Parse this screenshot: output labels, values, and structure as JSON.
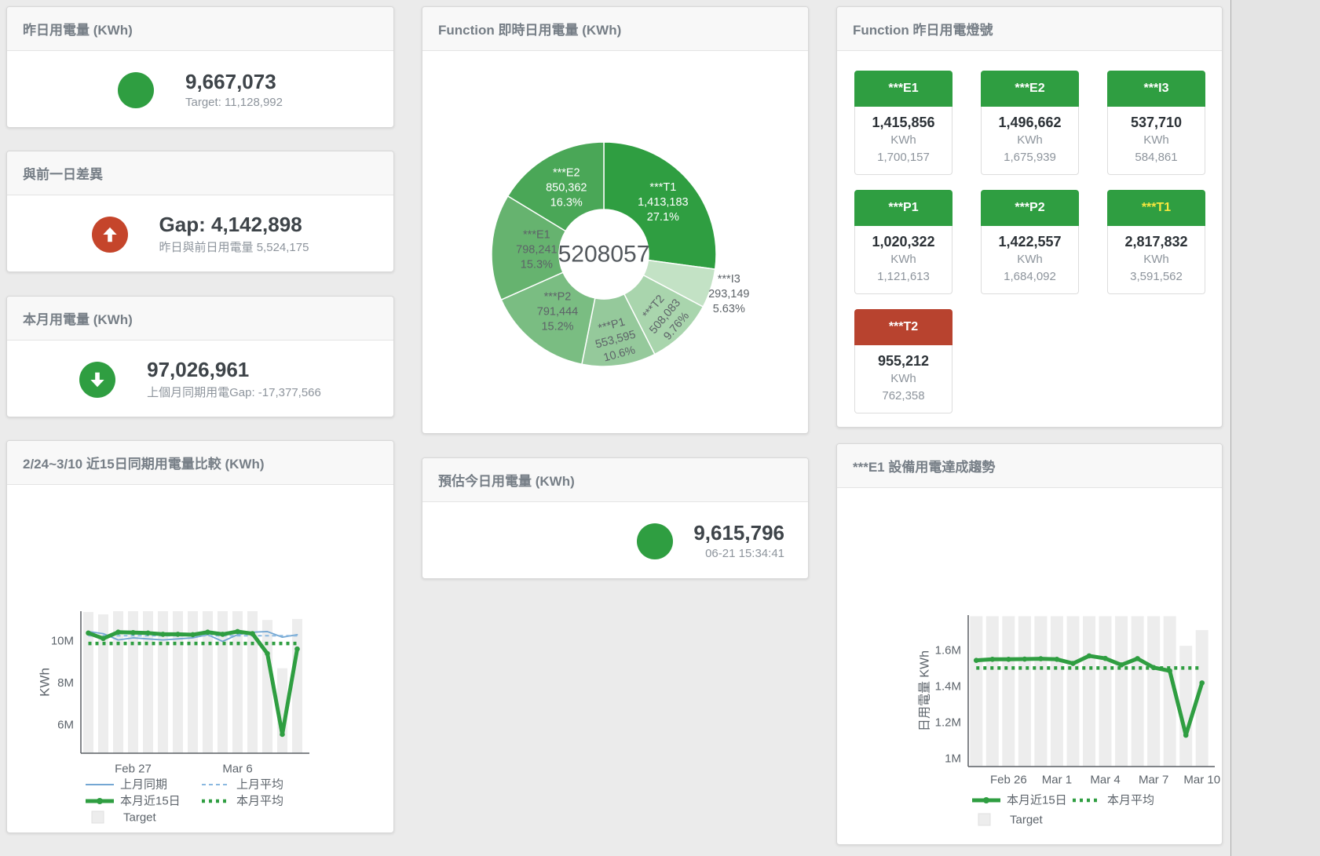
{
  "cards": {
    "yesterday": {
      "title": "昨日用電量 (KWh)",
      "value": "9,667,073",
      "subtitle": "Target: 11,128,992"
    },
    "day_gap": {
      "title": "與前一日差異",
      "value": "Gap: 4,142,898",
      "subtitle": "昨日與前日用電量 5,524,175"
    },
    "month": {
      "title": "本月用電量 (KWh)",
      "value": "97,026,961",
      "subtitle": "上個月同期用電Gap: -17,377,566"
    },
    "estimate": {
      "title": "預估今日用電量 (KWh)",
      "value": "9,615,796",
      "subtitle": "06-21 15:34:41"
    }
  },
  "donut_card": {
    "title": "Function 即時日用電量 (KWh)"
  },
  "lights_card": {
    "title": "Function 昨日用電燈號",
    "unit": "KWh",
    "tiles": [
      {
        "name": "***E1",
        "value": "1,415,856",
        "target": "1,700,157",
        "status": "green",
        "label_color": "#ffffff"
      },
      {
        "name": "***E2",
        "value": "1,496,662",
        "target": "1,675,939",
        "status": "green",
        "label_color": "#ffffff"
      },
      {
        "name": "***I3",
        "value": "537,710",
        "target": "584,861",
        "status": "green",
        "label_color": "#ffffff"
      },
      {
        "name": "***P1",
        "value": "1,020,322",
        "target": "1,121,613",
        "status": "green",
        "label_color": "#ffffff"
      },
      {
        "name": "***P2",
        "value": "1,422,557",
        "target": "1,684,092",
        "status": "green",
        "label_color": "#ffffff"
      },
      {
        "name": "***T1",
        "value": "2,817,832",
        "target": "3,591,562",
        "status": "green",
        "label_color": "#f7e73e"
      },
      {
        "name": "***T2",
        "value": "955,212",
        "target": "762,358",
        "status": "red",
        "label_color": "#ffffff"
      }
    ]
  },
  "trend_left_card": {
    "title": "2/24~3/10 近15日同期用電量比較 (KWh)"
  },
  "trend_right_card": {
    "title": "***E1 設備用電達成趨勢"
  },
  "colors": {
    "green": "#2f9e41",
    "red": "#c5452b",
    "blue": "#74a7d3",
    "blue_light": "#8ab8e0",
    "target_bar": "#ededed"
  },
  "chart_data": [
    {
      "id": "realtime-donut",
      "type": "pie",
      "title": "Function 即時日用電量 (KWh)",
      "center_total": "5208057",
      "slices": [
        {
          "name": "***T1",
          "value": 1413183,
          "pct": "27.1%",
          "color": "#2f9e41",
          "text": "#ffffff",
          "label_r": 0.7,
          "rot": 0
        },
        {
          "name": "***I3",
          "value": 293149,
          "pct": "5.63%",
          "color": "#c3e2c5",
          "text": "#5d6368",
          "label_r": 1.17,
          "rot": 0
        },
        {
          "name": "***T2",
          "value": 508083,
          "pct": "9.76%",
          "color": "#a9d5ad",
          "text": "#5d6368",
          "label_r": 0.78,
          "rot": -50
        },
        {
          "name": "***P1",
          "value": 553595,
          "pct": "10.6%",
          "color": "#95c99b",
          "text": "#5d6368",
          "label_r": 0.77,
          "rot": -15
        },
        {
          "name": "***P2",
          "value": 791444,
          "pct": "15.2%",
          "color": "#7abd82",
          "text": "#5d6368",
          "label_r": 0.66,
          "rot": 0
        },
        {
          "name": "***E1",
          "value": 798241,
          "pct": "15.3%",
          "color": "#66b36f",
          "text": "#5d6368",
          "label_r": 0.6,
          "rot": 0
        },
        {
          "name": "***E2",
          "value": 850362,
          "pct": "16.3%",
          "color": "#4aa757",
          "text": "#ffffff",
          "label_r": 0.68,
          "rot": 0
        }
      ]
    },
    {
      "id": "compare-15day",
      "type": "line",
      "title": "2/24~3/10 近15日同期用電量比較 (KWh)",
      "ylabel": "KWh",
      "ylim": [
        4650000,
        11420000
      ],
      "yticks": [
        {
          "v": 6000000,
          "label": "6M"
        },
        {
          "v": 8000000,
          "label": "8M"
        },
        {
          "v": 10000000,
          "label": "10M"
        }
      ],
      "xticks": [
        {
          "i": 3,
          "label": "Feb 27"
        },
        {
          "i": 10,
          "label": "Mar 6"
        }
      ],
      "target": {
        "name": "Target",
        "color": "#ededed",
        "values": [
          11380000,
          11270000,
          11420000,
          11420000,
          11420000,
          11420000,
          11420000,
          11420000,
          11420000,
          11420000,
          11420000,
          11420000,
          11000000,
          8700000,
          11050000
        ]
      },
      "series": [
        {
          "name": "上月同期",
          "style": "thin",
          "color": "#74a7d3",
          "values": [
            10450000,
            10350000,
            10050000,
            10150000,
            10100000,
            10050000,
            10100000,
            10150000,
            10300000,
            9980000,
            10300000,
            10420000,
            10450000,
            10180000,
            10300000
          ]
        },
        {
          "name": "上月平均",
          "style": "dashed",
          "color": "#8ab8e0",
          "value": 10250000
        },
        {
          "name": "本月近15日",
          "style": "thick",
          "color": "#2f9e41",
          "values": [
            10380000,
            10120000,
            10420000,
            10400000,
            10380000,
            10320000,
            10320000,
            10300000,
            10420000,
            10320000,
            10450000,
            10350000,
            9400000,
            5550000,
            9620000
          ]
        },
        {
          "name": "本月平均",
          "style": "dotted",
          "color": "#2f9e41",
          "value": 9880000
        }
      ]
    },
    {
      "id": "e1-trend",
      "type": "line",
      "title": "***E1 設備用電達成趨勢",
      "ylabel": "日用電量 KWh",
      "ylim": [
        956000,
        1796000
      ],
      "yticks": [
        {
          "v": 1000000,
          "label": "1M"
        },
        {
          "v": 1200000,
          "label": "1.2M"
        },
        {
          "v": 1400000,
          "label": "1.4M"
        },
        {
          "v": 1600000,
          "label": "1.6M"
        }
      ],
      "xticks": [
        {
          "i": 2,
          "label": "Feb 26"
        },
        {
          "i": 5,
          "label": "Mar 1"
        },
        {
          "i": 8,
          "label": "Mar 4"
        },
        {
          "i": 11,
          "label": "Mar 7"
        },
        {
          "i": 14,
          "label": "Mar 10"
        }
      ],
      "target": {
        "name": "Target",
        "color": "#ededed",
        "values": [
          1790000,
          1790000,
          1790000,
          1790000,
          1790000,
          1790000,
          1790000,
          1790000,
          1790000,
          1790000,
          1790000,
          1790000,
          1790000,
          1626000,
          1713000
        ]
      },
      "series": [
        {
          "name": "本月近15日",
          "style": "thick",
          "color": "#2f9e41",
          "values": [
            1545000,
            1551000,
            1551000,
            1552000,
            1554000,
            1551000,
            1528000,
            1570000,
            1556000,
            1520000,
            1555000,
            1505000,
            1487000,
            1130000,
            1420000
          ]
        },
        {
          "name": "本月平均",
          "style": "dotted",
          "color": "#2f9e41",
          "value": 1503000
        }
      ]
    }
  ]
}
